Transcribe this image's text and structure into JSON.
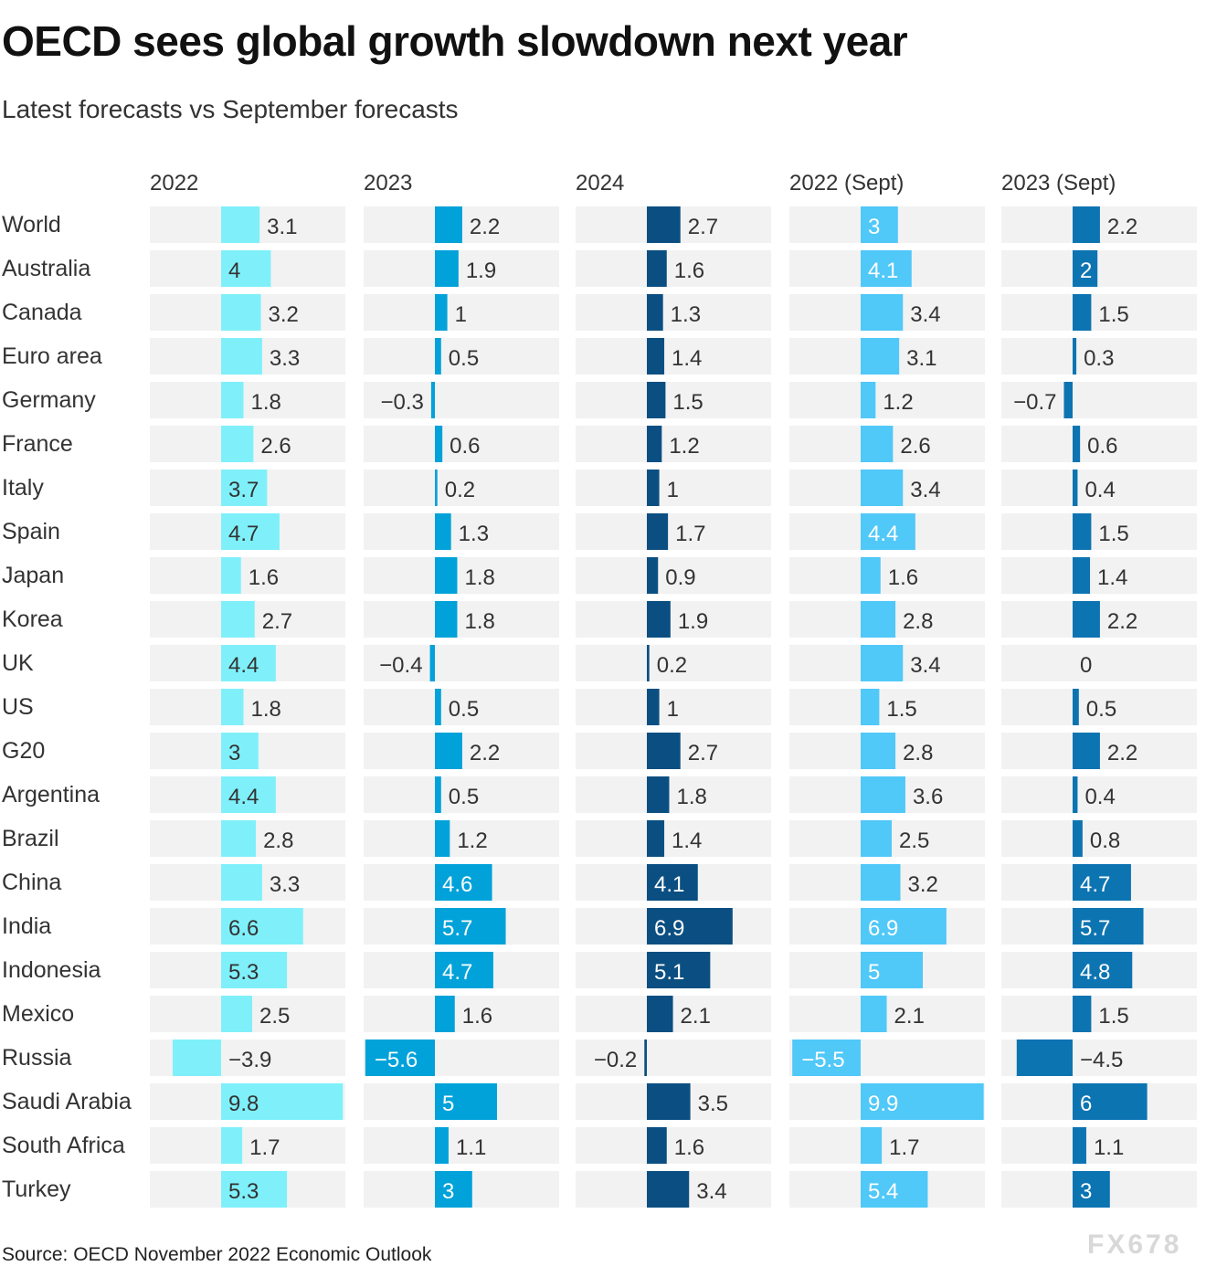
{
  "title": "OECD sees global growth slowdown next year",
  "subtitle": "Latest forecasts vs September forecasts",
  "source": "Source: OECD November 2022 Economic Outlook",
  "watermark": "FX678",
  "colors": {
    "panel_bg": "#f2f2f2",
    "c2022": "#7ff0fa",
    "c2023": "#00a2d9",
    "c2024": "#0b4f82",
    "c2022_sept": "#50c8f8",
    "c2023_sept": "#0d74b2",
    "label_dark": "#333333",
    "label_light": "#ffffff"
  },
  "chart_data": {
    "type": "bar",
    "orientation": "horizontal",
    "title": "OECD sees global growth slowdown next year",
    "subtitle": "Latest forecasts vs September forecasts",
    "xlim": [
      -5.6,
      9.9
    ],
    "categories": [
      "World",
      "Australia",
      "Canada",
      "Euro area",
      "Germany",
      "France",
      "Italy",
      "Spain",
      "Japan",
      "Korea",
      "UK",
      "US",
      "G20",
      "Argentina",
      "Brazil",
      "China",
      "India",
      "Indonesia",
      "Mexico",
      "Russia",
      "Saudi Arabia",
      "South Africa",
      "Turkey"
    ],
    "series": [
      {
        "name": "2022",
        "values": [
          3.1,
          4,
          3.2,
          3.3,
          1.8,
          2.6,
          3.7,
          4.7,
          1.6,
          2.7,
          4.4,
          1.8,
          3,
          4.4,
          2.8,
          3.3,
          6.6,
          5.3,
          2.5,
          -3.9,
          9.8,
          1.7,
          5.3
        ],
        "labels": [
          "3.1",
          "4",
          "3.2",
          "3.3",
          "1.8",
          "2.6",
          "3.7",
          "4.7",
          "1.6",
          "2.7",
          "4.4",
          "1.8",
          "3",
          "4.4",
          "2.8",
          "3.3",
          "6.6",
          "5.3",
          "2.5",
          "−3.9",
          "9.8",
          "1.7",
          "5.3"
        ]
      },
      {
        "name": "2023",
        "values": [
          2.2,
          1.9,
          1,
          0.5,
          -0.3,
          0.6,
          0.2,
          1.3,
          1.8,
          1.8,
          -0.4,
          0.5,
          2.2,
          0.5,
          1.2,
          4.6,
          5.7,
          4.7,
          1.6,
          -5.6,
          5,
          1.1,
          3
        ],
        "labels": [
          "2.2",
          "1.9",
          "1",
          "0.5",
          "−0.3",
          "0.6",
          "0.2",
          "1.3",
          "1.8",
          "1.8",
          "−0.4",
          "0.5",
          "2.2",
          "0.5",
          "1.2",
          "4.6",
          "5.7",
          "4.7",
          "1.6",
          "−5.6",
          "5",
          "1.1",
          "3"
        ]
      },
      {
        "name": "2024",
        "values": [
          2.7,
          1.6,
          1.3,
          1.4,
          1.5,
          1.2,
          1,
          1.7,
          0.9,
          1.9,
          0.2,
          1,
          2.7,
          1.8,
          1.4,
          4.1,
          6.9,
          5.1,
          2.1,
          -0.2,
          3.5,
          1.6,
          3.4
        ],
        "labels": [
          "2.7",
          "1.6",
          "1.3",
          "1.4",
          "1.5",
          "1.2",
          "1",
          "1.7",
          "0.9",
          "1.9",
          "0.2",
          "1",
          "2.7",
          "1.8",
          "1.4",
          "4.1",
          "6.9",
          "5.1",
          "2.1",
          "−0.2",
          "3.5",
          "1.6",
          "3.4"
        ]
      },
      {
        "name": "2022 (Sept)",
        "values": [
          3,
          4.1,
          3.4,
          3.1,
          1.2,
          2.6,
          3.4,
          4.4,
          1.6,
          2.8,
          3.4,
          1.5,
          2.8,
          3.6,
          2.5,
          3.2,
          6.9,
          5,
          2.1,
          -5.5,
          9.9,
          1.7,
          5.4
        ],
        "labels": [
          "3",
          "4.1",
          "3.4",
          "3.1",
          "1.2",
          "2.6",
          "3.4",
          "4.4",
          "1.6",
          "2.8",
          "3.4",
          "1.5",
          "2.8",
          "3.6",
          "2.5",
          "3.2",
          "6.9",
          "5",
          "2.1",
          "−5.5",
          "9.9",
          "1.7",
          "5.4"
        ]
      },
      {
        "name": "2023 (Sept)",
        "values": [
          2.2,
          2,
          1.5,
          0.3,
          -0.7,
          0.6,
          0.4,
          1.5,
          1.4,
          2.2,
          0,
          0.5,
          2.2,
          0.4,
          0.8,
          4.7,
          5.7,
          4.8,
          1.5,
          -4.5,
          6,
          1.1,
          3
        ],
        "labels": [
          "2.2",
          "2",
          "1.5",
          "0.3",
          "−0.7",
          "0.6",
          "0.4",
          "1.5",
          "1.4",
          "2.2",
          "0",
          "0.5",
          "2.2",
          "0.4",
          "0.8",
          "4.7",
          "5.7",
          "4.8",
          "1.5",
          "−4.5",
          "6",
          "1.1",
          "3"
        ]
      }
    ]
  }
}
